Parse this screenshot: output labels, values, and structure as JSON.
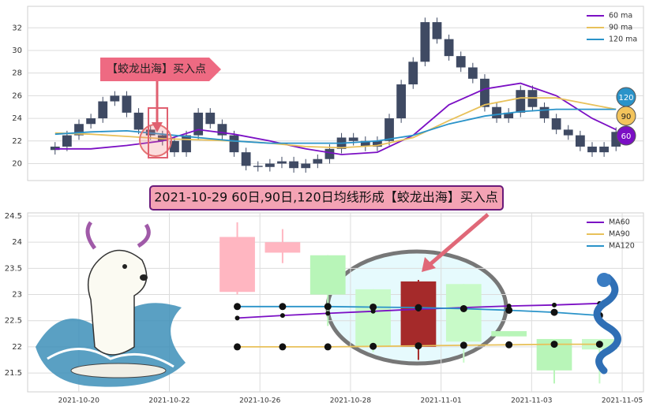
{
  "chart_data": [
    {
      "type": "candlestick",
      "annotation": "【蛟龙出海】买入点",
      "xlim": [
        -2.3,
        49.3
      ],
      "ylim": [
        18.5,
        33.9
      ],
      "yticks": [
        20,
        22,
        24,
        26,
        28,
        30,
        32
      ],
      "grid": true,
      "legend": "upper right",
      "color": "#3f4a63",
      "x": [
        0,
        1,
        2,
        3,
        4,
        5,
        6,
        7,
        8,
        9,
        10,
        11,
        12,
        13,
        14,
        15,
        16,
        17,
        18,
        19,
        20,
        21,
        22,
        23,
        24,
        25,
        26,
        27,
        28,
        29,
        30,
        31,
        32,
        33,
        34,
        35,
        36,
        37,
        38,
        39,
        40,
        41,
        42,
        43,
        44,
        45,
        46,
        47
      ],
      "open": [
        21.2,
        21.5,
        22.5,
        23.5,
        24.0,
        25.5,
        26.0,
        24.5,
        23.0,
        22.5,
        22.0,
        21.0,
        22.5,
        24.5,
        23.5,
        22.5,
        21.0,
        19.8,
        19.7,
        20.0,
        20.2,
        19.6,
        20.0,
        20.4,
        21.3,
        22.3,
        22.0,
        21.5,
        22.0,
        24.0,
        27.0,
        29.0,
        32.5,
        31.0,
        29.5,
        28.5,
        27.5,
        25.0,
        24.0,
        24.5,
        26.5,
        25.0,
        24.0,
        23.0,
        22.5,
        21.5,
        21.0,
        21.5
      ],
      "high": [
        21.9,
        22.9,
        23.9,
        24.4,
        25.9,
        26.4,
        26.4,
        24.9,
        23.4,
        22.9,
        22.4,
        22.9,
        24.9,
        24.9,
        23.9,
        22.9,
        21.4,
        20.2,
        20.4,
        20.6,
        20.6,
        20.4,
        20.8,
        21.7,
        22.7,
        22.7,
        22.4,
        22.4,
        24.4,
        27.4,
        29.4,
        32.9,
        32.9,
        31.4,
        29.9,
        28.9,
        27.9,
        25.4,
        24.9,
        26.9,
        26.9,
        25.4,
        24.4,
        23.4,
        22.9,
        21.9,
        21.9,
        23.2
      ],
      "low": [
        20.8,
        21.1,
        22.1,
        23.1,
        23.6,
        25.1,
        24.1,
        22.6,
        22.1,
        21.6,
        20.6,
        20.6,
        22.1,
        23.1,
        22.1,
        20.6,
        19.4,
        19.3,
        19.3,
        19.6,
        19.2,
        19.2,
        19.6,
        20.0,
        20.9,
        21.6,
        21.1,
        21.1,
        21.6,
        23.6,
        26.6,
        28.6,
        30.6,
        29.1,
        28.1,
        27.1,
        24.6,
        23.6,
        23.6,
        24.1,
        24.6,
        23.6,
        22.6,
        22.1,
        21.1,
        20.6,
        20.6,
        21.1
      ],
      "close": [
        21.5,
        22.5,
        23.5,
        24.0,
        25.5,
        26.0,
        24.5,
        23.0,
        22.5,
        22.0,
        21.0,
        22.5,
        24.5,
        23.5,
        22.5,
        21.0,
        19.8,
        19.7,
        20.0,
        20.2,
        19.6,
        20.0,
        20.4,
        21.3,
        22.3,
        22.0,
        21.5,
        22.0,
        24.0,
        27.0,
        29.0,
        32.5,
        31.0,
        29.5,
        28.5,
        27.5,
        25.0,
        24.0,
        24.5,
        26.5,
        25.0,
        24.0,
        23.0,
        22.5,
        21.5,
        21.0,
        21.5,
        22.8
      ],
      "series": [
        {
          "name": "60 ma",
          "color": "#7b0fc4",
          "x": [
            0,
            3,
            6,
            9,
            12,
            15,
            18,
            21,
            24,
            27,
            30,
            33,
            36,
            39,
            42,
            45,
            47
          ],
          "values": [
            21.3,
            21.3,
            21.6,
            22.0,
            23.0,
            22.6,
            22.0,
            21.3,
            20.8,
            21.0,
            22.5,
            25.2,
            26.6,
            27.1,
            26.0,
            24.0,
            23.0
          ]
        },
        {
          "name": "90 ma",
          "color": "#e8c15a",
          "x": [
            0,
            3,
            6,
            9,
            12,
            15,
            18,
            21,
            24,
            27,
            30,
            33,
            36,
            39,
            42,
            45,
            47
          ],
          "values": [
            22.7,
            22.6,
            22.4,
            22.2,
            22.1,
            22.0,
            21.8,
            21.5,
            21.4,
            21.6,
            22.3,
            23.8,
            25.2,
            25.8,
            25.8,
            25.2,
            24.8
          ]
        },
        {
          "name": "120 ma",
          "color": "#2a93c9",
          "x": [
            0,
            3,
            6,
            9,
            12,
            15,
            18,
            21,
            24,
            27,
            30,
            33,
            36,
            39,
            42,
            45,
            47
          ],
          "values": [
            22.6,
            22.8,
            22.9,
            22.6,
            22.3,
            22.0,
            21.8,
            21.8,
            21.8,
            22.0,
            22.5,
            23.5,
            24.2,
            24.6,
            24.8,
            24.8,
            24.8
          ]
        }
      ],
      "badges": [
        {
          "label": "120",
          "color": "#2a93c9"
        },
        {
          "label": "90",
          "color": "#f3c45c"
        },
        {
          "label": "60",
          "color": "#7b0fc4"
        }
      ]
    },
    {
      "type": "candlestick",
      "annotation": "2021-10-29 60日,90日,120日均线形成【蛟龙出海】买入点",
      "xlim": [
        -1.13,
        12.47
      ],
      "ylim": [
        21.14,
        24.56
      ],
      "yticks": [
        21.5,
        22.0,
        22.5,
        23.0,
        23.5,
        24.0,
        24.5
      ],
      "grid": true,
      "legend": "upper right",
      "xticks": [
        {
          "value": 0,
          "label": "2021-10-20"
        },
        {
          "value": 2,
          "label": "2021-10-22"
        },
        {
          "value": 4,
          "label": "2021-10-26"
        },
        {
          "value": 6,
          "label": "2021-10-28"
        },
        {
          "value": 8,
          "label": "2021-11-01"
        },
        {
          "value": 10,
          "label": "2021-11-03"
        },
        {
          "value": 12,
          "label": "2021-11-05"
        }
      ],
      "x": [
        3.5,
        4.5,
        5.5,
        6.5,
        7.5,
        8.5,
        9.5,
        10.5,
        11.5
      ],
      "open": [
        23.05,
        23.8,
        23.75,
        23.1,
        22.0,
        23.2,
        22.3,
        22.15,
        22.15
      ],
      "high": [
        24.38,
        24.25,
        23.75,
        23.1,
        23.28,
        23.2,
        22.3,
        22.15,
        22.15
      ],
      "low": [
        23.0,
        23.6,
        22.4,
        21.9,
        21.75,
        21.7,
        22.2,
        21.3,
        21.3
      ],
      "close": [
        24.1,
        24.0,
        23.0,
        22.0,
        23.25,
        22.1,
        22.2,
        21.55,
        21.95
      ],
      "colors": [
        "#ffb6c1",
        "#ffb6c1",
        "#b8f5b8",
        "#c8fac8",
        "#a52a2a",
        "#c8fac8",
        "#b8f5b8",
        "#b8f5b8",
        "#c8fac8"
      ],
      "series": [
        {
          "name": "MA60",
          "color": "#7b0fc4",
          "x": [
            3.5,
            4.5,
            5.5,
            6.5,
            7.5,
            8.5,
            9.5,
            10.5,
            11.5
          ],
          "values": [
            22.55,
            22.6,
            22.64,
            22.68,
            22.72,
            22.75,
            22.78,
            22.8,
            22.83
          ]
        },
        {
          "name": "MA90",
          "color": "#e8c15a",
          "x": [
            3.5,
            4.5,
            5.5,
            6.5,
            7.5,
            8.5,
            9.5,
            10.5,
            11.5
          ],
          "values": [
            22.0,
            22.0,
            22.0,
            22.01,
            22.02,
            22.03,
            22.04,
            22.05,
            22.05
          ]
        },
        {
          "name": "MA120",
          "color": "#2a93c9",
          "x": [
            3.5,
            4.5,
            5.5,
            6.5,
            7.5,
            8.5,
            9.5,
            10.5,
            11.5
          ],
          "values": [
            22.77,
            22.77,
            22.77,
            22.76,
            22.75,
            22.73,
            22.7,
            22.66,
            22.6
          ]
        }
      ]
    }
  ]
}
